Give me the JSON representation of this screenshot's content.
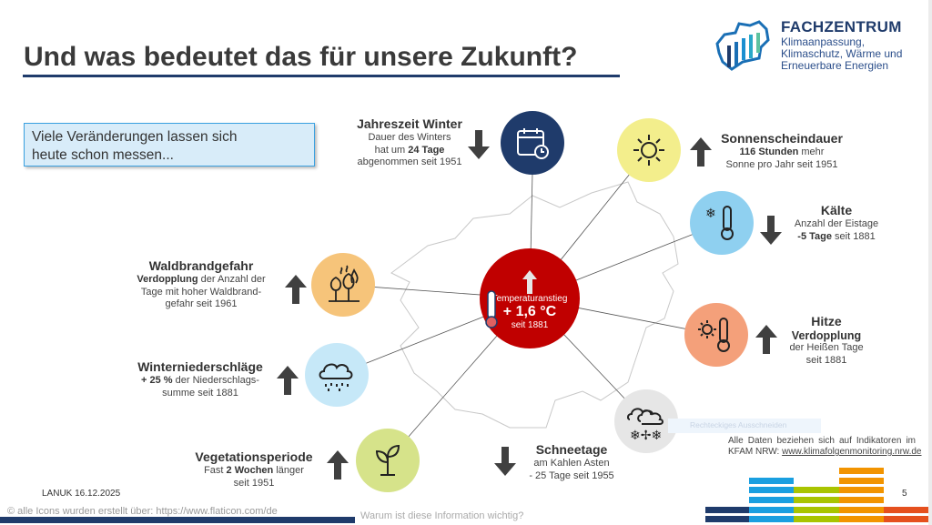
{
  "title": "Und was bedeutet das für unsere Zukunft?",
  "logo": {
    "name": "FACHZENTRUM",
    "lines": [
      "Klimaanpassung,",
      "Klimaschutz, Wärme und",
      "Erneuerbare Energien"
    ]
  },
  "callout": {
    "line1": "Viele Veränderungen lassen sich",
    "line2": "heute schon messen..."
  },
  "center": {
    "label": "Temperaturanstieg",
    "value": "+ 1,6 °C",
    "since": "seit 1881",
    "color": "#c00000"
  },
  "indicators": {
    "winter": {
      "heading": "Jahreszeit Winter",
      "l1": "Dauer des Winters",
      "l2a": "hat um ",
      "l2b": "24 Tage",
      "l3": "abgenommen seit 1951",
      "trend": "down",
      "icon": "calendar-icon",
      "color": "#1f3b6b"
    },
    "sun": {
      "heading": "Sonnenscheindauer",
      "l1a": "116 Stunden",
      "l1b": " mehr",
      "l2": "Sonne pro Jahr seit 1951",
      "trend": "up",
      "icon": "sun-icon",
      "color": "#f3ee8c"
    },
    "cold": {
      "heading": "Kälte",
      "l1": "Anzahl der Eistage",
      "l2a": "-5 Tage",
      "l2b": " seit 1881",
      "trend": "down",
      "icon": "thermometer-cold-icon",
      "color": "#8fd0f0"
    },
    "fire": {
      "heading": "Waldbrandgefahr",
      "l1a": "Verdopplung",
      "l1b": " der Anzahl der",
      "l2": "Tage mit hoher Waldbrand-",
      "l3": "gefahr seit 1961",
      "trend": "up",
      "icon": "forest-fire-icon",
      "color": "#f6c47a"
    },
    "heat": {
      "heading": "Hitze",
      "l1": "Verdopplung",
      "l2": "der Heißen Tage",
      "l3": "seit 1881",
      "trend": "up",
      "icon": "thermometer-hot-icon",
      "color": "#f4a07a"
    },
    "rain": {
      "heading": "Winterniederschläge",
      "l1a": "+ 25 %",
      "l1b": " der Niederschlags-",
      "l2": "summe seit 1881",
      "trend": "up",
      "icon": "rain-cloud-icon",
      "color": "#c6e8f8"
    },
    "snow": {
      "heading": "Schneetage",
      "l1": "am Kahlen Asten",
      "l2": "- 25 Tage seit 1955",
      "trend": "down",
      "icon": "snow-cloud-icon",
      "color": "#e6e6e6"
    },
    "veg": {
      "heading": "Vegetationsperiode",
      "l1a": "Fast ",
      "l1b": "2 Wochen",
      "l1c": " länger",
      "l2": "seit 1951",
      "trend": "up",
      "icon": "plant-icon",
      "color": "#d6e38a"
    }
  },
  "tooltip": "Rechteckiges Ausschneiden",
  "source": {
    "text": "Alle Daten beziehen sich auf Indikatoren im",
    "prefix": "KFAM NRW: ",
    "link": "www.klimafolgenmonitoring.nrw.de"
  },
  "footer": {
    "org_date": "LANUK 16.12.2025",
    "credits": "© alle Icons wurden erstellt über: https://www.flaticon.com/de",
    "question": "Warum ist diese Information wichtig?",
    "page": "5"
  },
  "colors": {
    "navy": "#1f3b6b",
    "blue": "#1a9fe0",
    "green": "#a9c400",
    "orange": "#f29400",
    "red": "#e5501e",
    "arrow": "#404040"
  }
}
